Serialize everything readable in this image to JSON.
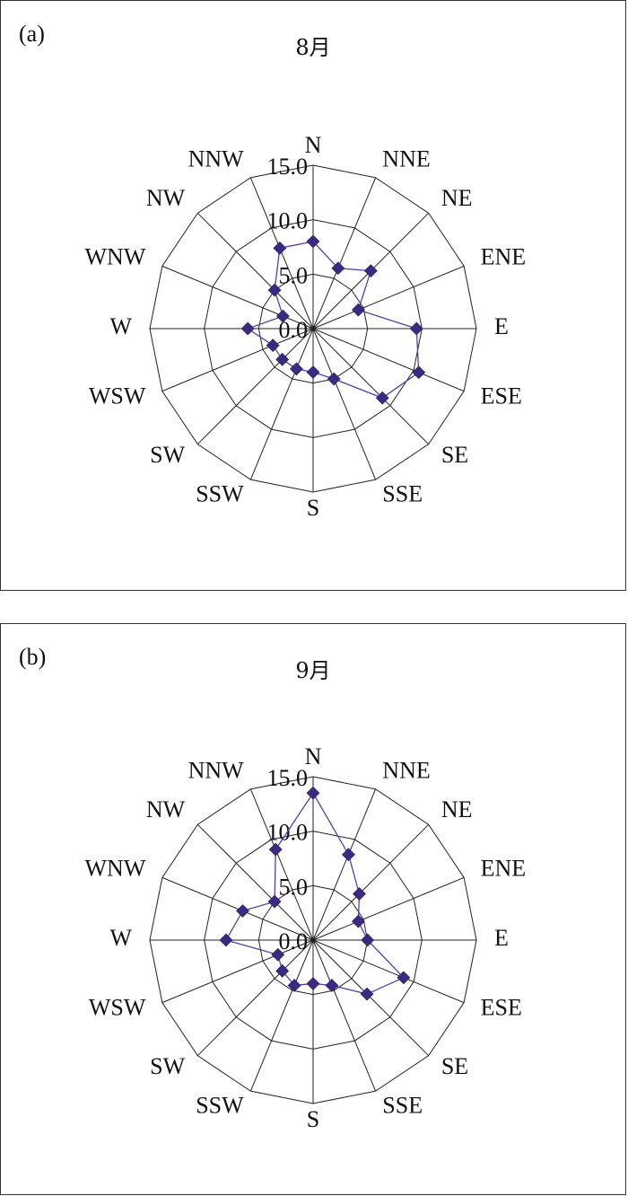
{
  "panels": [
    {
      "tag": "(a)",
      "title": "8月"
    },
    {
      "tag": "(b)",
      "title": "9月"
    }
  ],
  "chart_data": [
    {
      "type": "radar",
      "title": "8月",
      "categories": [
        "N",
        "NNE",
        "NE",
        "ENE",
        "E",
        "ESE",
        "SE",
        "SSE",
        "S",
        "SSW",
        "SW",
        "WSW",
        "W",
        "WNW",
        "NW",
        "NNW"
      ],
      "rticks": [
        "0.0",
        "5.0",
        "10.0",
        "15.0"
      ],
      "rlim": [
        0,
        15
      ],
      "grid": true,
      "values": [
        8.0,
        6.0,
        7.5,
        4.5,
        9.5,
        10.5,
        9.0,
        5.0,
        4.0,
        4.0,
        4.0,
        4.0,
        6.0,
        3.0,
        5.0,
        8.0
      ],
      "colors": {
        "line": "#5a3ea6",
        "marker": "#3b2a82"
      }
    },
    {
      "type": "radar",
      "title": "9月",
      "categories": [
        "N",
        "NNE",
        "NE",
        "ENE",
        "E",
        "ESE",
        "SE",
        "SSE",
        "S",
        "SSW",
        "SW",
        "WSW",
        "W",
        "WNW",
        "NW",
        "NNW"
      ],
      "rticks": [
        "0.0",
        "5.0",
        "10.0",
        "15.0"
      ],
      "rlim": [
        0,
        15
      ],
      "grid": true,
      "values": [
        13.5,
        8.5,
        6.0,
        4.5,
        5.0,
        9.0,
        7.0,
        4.5,
        4.0,
        4.5,
        4.0,
        3.5,
        8.0,
        7.0,
        5.0,
        9.0
      ],
      "colors": {
        "line": "#5a3ea6",
        "marker": "#3b2a82"
      }
    }
  ]
}
